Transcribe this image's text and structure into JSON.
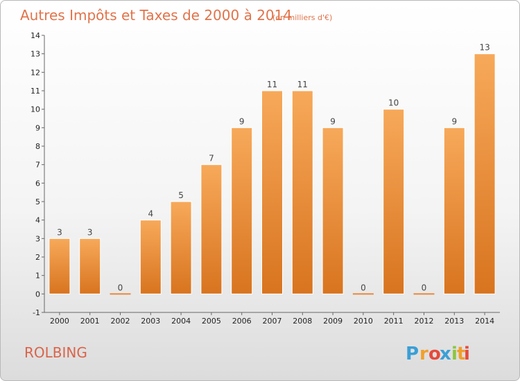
{
  "chart_data": {
    "type": "bar",
    "title": "Autres Impôts et Taxes de 2000 à 2014",
    "unit_label": "(en milliers d'€)",
    "categories": [
      "2000",
      "2001",
      "2002",
      "2003",
      "2004",
      "2005",
      "2006",
      "2007",
      "2008",
      "2009",
      "2010",
      "2011",
      "2012",
      "2013",
      "2014"
    ],
    "values": [
      3,
      3,
      0,
      4,
      5,
      7,
      9,
      11,
      11,
      9,
      0,
      10,
      0,
      9,
      13
    ],
    "yticks": [
      "-1",
      "0",
      "1",
      "2",
      "3",
      "4",
      "5",
      "6",
      "7",
      "8",
      "9",
      "10",
      "11",
      "12",
      "13",
      "14"
    ],
    "ylim": [
      -1,
      14
    ],
    "grid": false,
    "bar_color": "#e8873a",
    "bar_color_light": "#f5a85a"
  },
  "place_name": "ROLBING",
  "brand": {
    "letters": [
      "P",
      "r",
      "o",
      "x",
      "i",
      "t",
      "i"
    ],
    "colors": [
      "#3a9fd6",
      "#f0a02a",
      "#e64a3c",
      "#3a9fd6",
      "#8cc63f",
      "#f0a02a",
      "#e64a3c"
    ]
  }
}
